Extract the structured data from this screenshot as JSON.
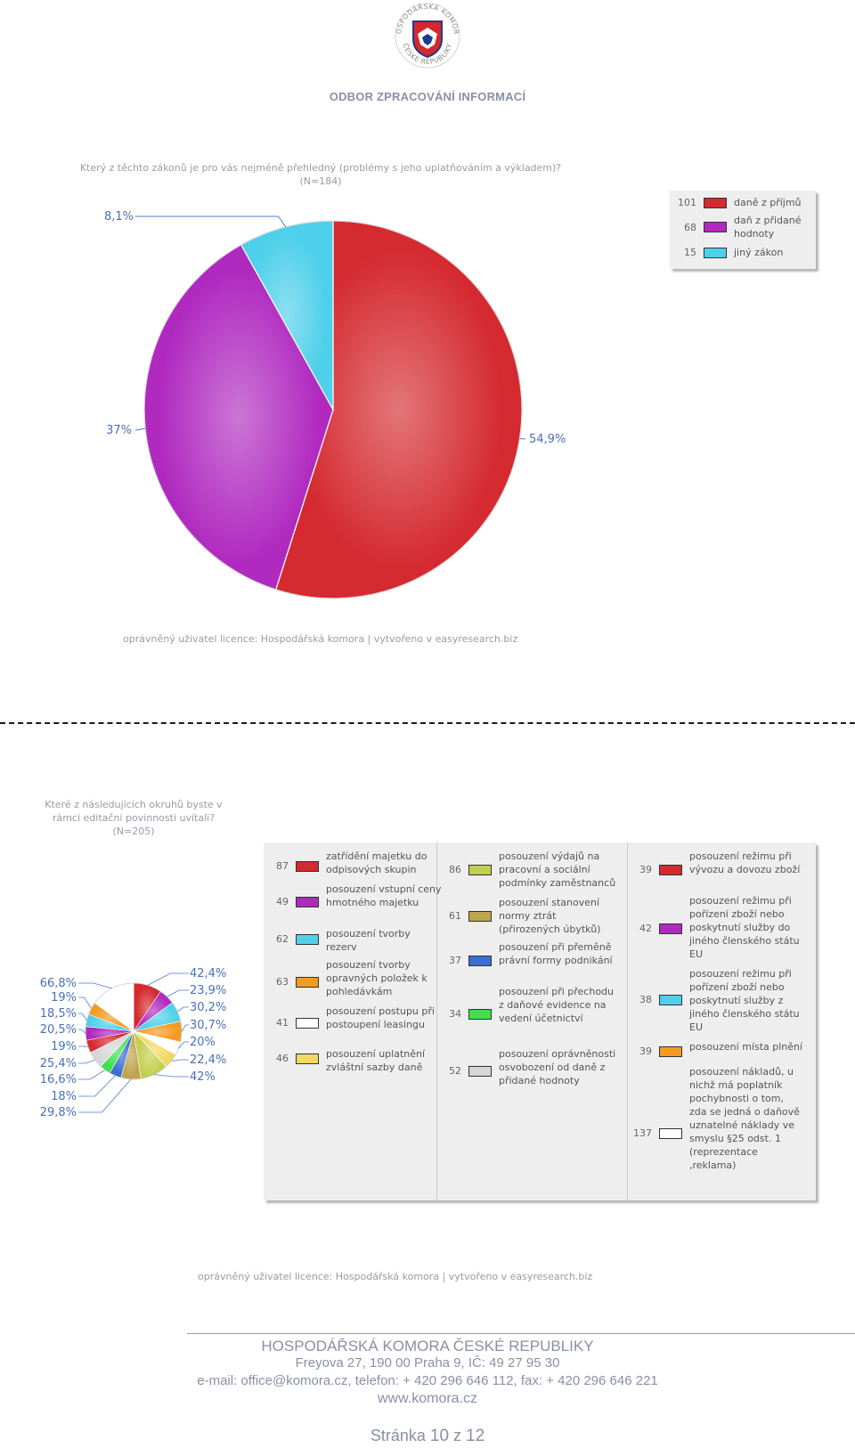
{
  "header": {
    "logo_text_top": "HOSPODÁŘSKÁ KOMORA",
    "logo_text_bottom": "ČESKÉ REPUBLIKY",
    "department": "ODBOR ZPRACOVÁNÍ INFORMACÍ"
  },
  "chart_data": [
    {
      "type": "pie",
      "title": "Který z těchto zákonů je pro vás nejméně přehledný (problémy s jeho uplatňováním a výkladem)?",
      "subtitle": "(N=184)",
      "slices": [
        {
          "label": "daně z příjmů",
          "count": "101",
          "percent_label": "54,9%",
          "value": 54.9,
          "color": "#d42a30"
        },
        {
          "label": "daň z přidané hodnoty",
          "count": "68",
          "percent_label": "37%",
          "value": 37.0,
          "color": "#b02ac0"
        },
        {
          "label": "jiný zákon",
          "count": "15",
          "percent_label": "8,1%",
          "value": 8.1,
          "color": "#4fd0ea"
        }
      ],
      "legend_placement": "top-right",
      "credit": "oprávněný uživatel licence: Hospodářská komora | vytvořeno v easyresearch.biz"
    },
    {
      "type": "pie",
      "title": "Které z následujících okruhů byste v rámci editační povinnosti uvítali?",
      "subtitle": "(N=205)",
      "legend_placement": "right",
      "slices": [
        {
          "label": "zatřídění majetku do odpisových skupin",
          "count": "87",
          "percent_label": "42,4%",
          "value": 87,
          "color": "#d42a30"
        },
        {
          "label": "posouzení vstupní ceny hmotného majetku",
          "count": "49",
          "percent_label": "23,9%",
          "value": 49,
          "color": "#b02ac0"
        },
        {
          "label": "posouzení tvorby rezerv",
          "count": "62",
          "percent_label": "30,2%",
          "value": 62,
          "color": "#4fd0ea"
        },
        {
          "label": "posouzení tvorby opravných položek k pohledávkám",
          "count": "63",
          "percent_label": "30,7%",
          "value": 63,
          "color": "#f59a22"
        },
        {
          "label": "posouzení postupu při postoupení leasingu",
          "count": "41",
          "percent_label": "20%",
          "value": 41,
          "color": "#ffffff"
        },
        {
          "label": "posouzení uplatnění zvláštní sazby daně",
          "count": "46",
          "percent_label": "22,4%",
          "value": 46,
          "color": "#f2d860"
        },
        {
          "label": "posouzení výdajů na pracovní a sociální podmínky zaměstnanců",
          "count": "86",
          "percent_label": "42%",
          "value": 86,
          "color": "#c2cf4e"
        },
        {
          "label": "posouzení stanovení normy ztrát (přirozených úbytků)",
          "count": "61",
          "percent_label": "29,8%",
          "value": 61,
          "color": "#bfa450"
        },
        {
          "label": "posouzení při přeměně právní formy podnikání",
          "count": "37",
          "percent_label": "18%",
          "value": 37,
          "color": "#3b6ed0"
        },
        {
          "label": "posouzení při přechodu z daňové evidence na vedení účetnictví",
          "count": "34",
          "percent_label": "16,6%",
          "value": 34,
          "color": "#3fe04a"
        },
        {
          "label": "posouzení oprávněnosti osvobození od daně z přidané hodnoty",
          "count": "52",
          "percent_label": "25,4%",
          "value": 52,
          "color": "#d6d6d6"
        },
        {
          "label": "posouzení režimu při vývozu a dovozu zboží",
          "count": "39",
          "percent_label": "19%",
          "value": 39,
          "color": "#d42a30"
        },
        {
          "label": "posouzení režimu při pořízení zboží nebo poskytnutí služby do jiného členského státu EU",
          "count": "42",
          "percent_label": "20,5%",
          "value": 42,
          "color": "#b02ac0"
        },
        {
          "label": "posouzení režimu při pořízení zboží nebo poskytnutí služby z jiného členského státu EU",
          "count": "38",
          "percent_label": "18,5%",
          "value": 38,
          "color": "#4fd0ea"
        },
        {
          "label": "posouzení místa plnění",
          "count": "39",
          "percent_label": "19%",
          "value": 39,
          "color": "#f59a22"
        },
        {
          "label": "posouzení nákladů, u nichž má poplatník pochybnosti o tom, zda se jedná o daňově uznatelné náklady ve smyslu §25 odst. 1 (reprezentace ,reklama)",
          "count": "137",
          "percent_label": "66,8%",
          "value": 137,
          "color": "#ffffff"
        }
      ],
      "credit": "oprávněný uživatel licence: Hospodářská komora | vytvořeno v easyresearch.biz"
    }
  ],
  "footer": {
    "org": "HOSPODÁŘSKÁ KOMORA ČESKÉ REPUBLIKY",
    "address": "Freyova 27, 190 00  Praha 9, IČ: 49 27 95 30",
    "contact": "e-mail: office@komora.cz, telefon: + 420 296 646 112, fax: + 420 296 646 221",
    "web": "www.komora.cz",
    "page_prefix": "Stránka",
    "page_current": "10",
    "page_sep": "z",
    "page_total": "12"
  }
}
